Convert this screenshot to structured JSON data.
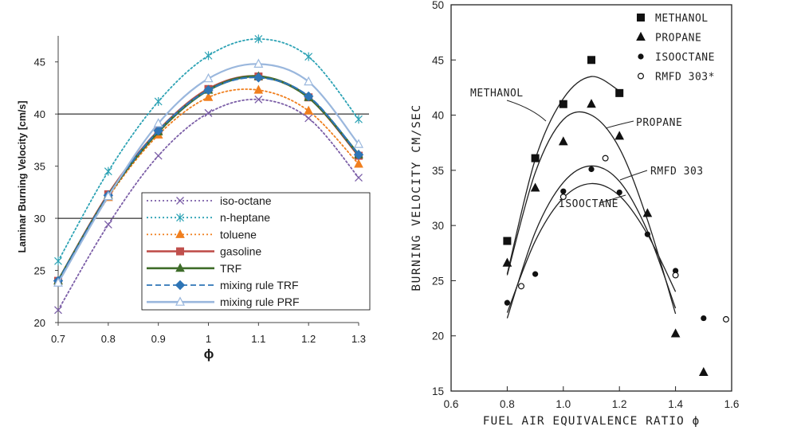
{
  "chart_data": [
    {
      "type": "line",
      "xlabel": "ϕ",
      "ylabel": "Laminar Burning Velocity [cm/s]",
      "xlim": [
        0.7,
        1.3
      ],
      "ylim": [
        20,
        47.5
      ],
      "x_ticks": [
        "0.7",
        "0.8",
        "0.9",
        "1",
        "1.1",
        "1.2",
        "1.3"
      ],
      "y_ticks": [
        "20",
        "25",
        "30",
        "35",
        "40",
        "45"
      ],
      "reference_lines_y": [
        30,
        40
      ],
      "legend_position": "bottom-center",
      "x": [
        0.7,
        0.8,
        0.9,
        1.0,
        1.1,
        1.2,
        1.3
      ],
      "series": [
        {
          "name": "iso-octane",
          "color": "#7b5ea7",
          "style": "dotted",
          "marker": "x",
          "values": [
            21.2,
            29.4,
            36.0,
            40.1,
            41.4,
            39.6,
            33.9
          ]
        },
        {
          "name": "n-heptane",
          "color": "#2ea3b5",
          "style": "dotted",
          "marker": "star",
          "values": [
            25.9,
            34.5,
            41.2,
            45.6,
            47.2,
            45.5,
            39.5
          ]
        },
        {
          "name": "toluene",
          "color": "#f07f1e",
          "style": "dotted",
          "marker": "triangle",
          "values": [
            24.0,
            32.0,
            38.0,
            41.6,
            42.3,
            40.3,
            35.2
          ]
        },
        {
          "name": "gasoline",
          "color": "#c0504d",
          "style": "solid",
          "marker": "square",
          "values": [
            24.0,
            32.3,
            38.4,
            42.4,
            43.6,
            41.6,
            36.0
          ]
        },
        {
          "name": "TRF",
          "color": "#3f6d2a",
          "style": "solid",
          "marker": "triangle",
          "values": [
            24.0,
            32.2,
            38.3,
            42.3,
            43.6,
            41.6,
            36.1
          ]
        },
        {
          "name": "mixing rule TRF",
          "color": "#2e75b6",
          "style": "dashed",
          "marker": "diamond",
          "values": [
            24.0,
            32.2,
            38.4,
            42.3,
            43.5,
            41.7,
            36.1
          ]
        },
        {
          "name": "mixing rule PRF",
          "color": "#9ab7dd",
          "style": "solid",
          "marker": "triangle-open",
          "values": [
            23.8,
            32.1,
            39.1,
            43.4,
            44.8,
            43.1,
            37.1
          ]
        }
      ]
    },
    {
      "type": "scatter",
      "xlabel": "FUEL AIR EQUIVALENCE RATIO ϕ",
      "ylabel": "BURNING VELOCITY CM/SEC",
      "xlim": [
        0.6,
        1.6
      ],
      "ylim": [
        15,
        50
      ],
      "x_ticks": [
        "0.6",
        "0.8",
        "1.0",
        "1.2",
        "1.4",
        "1.6"
      ],
      "y_ticks": [
        "15",
        "20",
        "25",
        "30",
        "35",
        "40",
        "45",
        "50"
      ],
      "legend_position": "top-right",
      "series": [
        {
          "name": "METHANOL",
          "marker": "square",
          "points": [
            [
              0.8,
              28.6
            ],
            [
              0.9,
              36.1
            ],
            [
              1.0,
              41.0
            ],
            [
              1.1,
              45.0
            ],
            [
              1.2,
              42.0
            ]
          ]
        },
        {
          "name": "PROPANE",
          "marker": "triangle",
          "points": [
            [
              0.8,
              26.6
            ],
            [
              0.9,
              33.4
            ],
            [
              1.0,
              37.6
            ],
            [
              1.1,
              41.0
            ],
            [
              1.2,
              38.1
            ],
            [
              1.3,
              31.1
            ],
            [
              1.4,
              20.2
            ],
            [
              1.5,
              16.7
            ]
          ]
        },
        {
          "name": "ISOOCTANE",
          "marker": "circle",
          "points": [
            [
              0.8,
              23.0
            ],
            [
              0.9,
              25.6
            ],
            [
              1.0,
              33.1
            ],
            [
              1.1,
              35.1
            ],
            [
              1.2,
              33.0
            ],
            [
              1.3,
              29.2
            ],
            [
              1.4,
              25.9
            ],
            [
              1.5,
              21.6
            ]
          ]
        },
        {
          "name": "RMFD 303*",
          "marker": "circle-open",
          "points": [
            [
              0.85,
              24.5
            ],
            [
              1.0,
              32.6
            ],
            [
              1.15,
              36.1
            ],
            [
              1.4,
              25.5
            ],
            [
              1.58,
              21.5
            ]
          ]
        }
      ],
      "fitted_curves": [
        {
          "label": "METHANOL",
          "points": [
            [
              0.8,
              25.6
            ],
            [
              0.9,
              36.0
            ],
            [
              1.0,
              41.5
            ],
            [
              1.1,
              43.5
            ],
            [
              1.2,
              42.2
            ]
          ]
        },
        {
          "label": "PROPANE",
          "points": [
            [
              0.8,
              25.5
            ],
            [
              0.9,
              34.8
            ],
            [
              1.0,
              39.6
            ],
            [
              1.1,
              40.0
            ],
            [
              1.2,
              37.0
            ],
            [
              1.3,
              30.5
            ],
            [
              1.4,
              22.0
            ]
          ]
        },
        {
          "label": "RMFD 303",
          "points": [
            [
              0.8,
              21.6
            ],
            [
              0.9,
              29.4
            ],
            [
              1.0,
              33.9
            ],
            [
              1.1,
              35.4
            ],
            [
              1.2,
              34.0
            ],
            [
              1.3,
              29.5
            ],
            [
              1.4,
              22.5
            ]
          ]
        },
        {
          "label": "ISOOCTANE",
          "points": [
            [
              0.8,
              22.1
            ],
            [
              0.9,
              28.6
            ],
            [
              1.0,
              32.5
            ],
            [
              1.1,
              33.8
            ],
            [
              1.2,
              32.7
            ],
            [
              1.3,
              29.2
            ],
            [
              1.4,
              24.0
            ]
          ]
        }
      ]
    }
  ]
}
